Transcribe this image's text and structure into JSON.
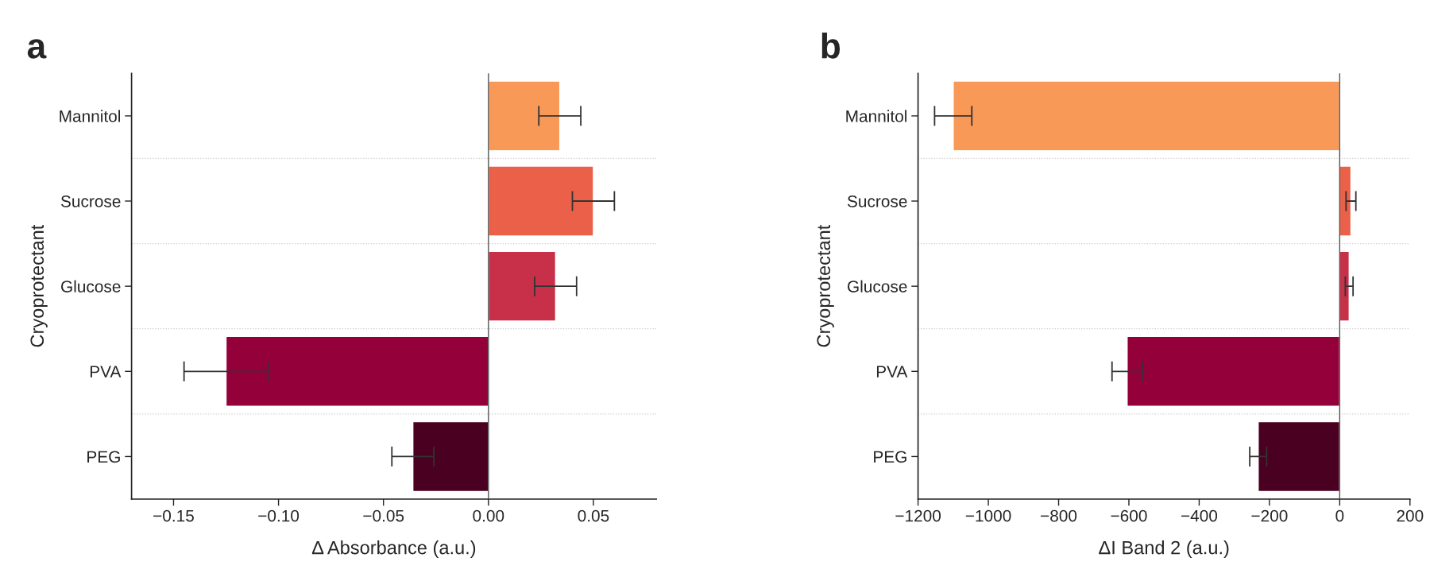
{
  "chart_data": [
    {
      "type": "bar",
      "orientation": "horizontal",
      "title": "a",
      "xlabel": "Δ Absorbance (a.u.)",
      "ylabel": "Cryoprotectant",
      "categories": [
        "Mannitol",
        "Sucrose",
        "Glucose",
        "PVA",
        "PEG"
      ],
      "values": [
        0.034,
        0.05,
        0.032,
        -0.125,
        -0.036
      ],
      "errors": [
        0.01,
        0.01,
        0.01,
        0.02,
        0.01
      ],
      "colors": [
        "#f89957",
        "#ea6048",
        "#c8304a",
        "#93003a",
        "#4a0020"
      ],
      "xlim": [
        -0.17,
        0.08
      ],
      "xticks": [
        {
          "value": -0.15,
          "label": "−0.15"
        },
        {
          "value": -0.1,
          "label": "−0.10"
        },
        {
          "value": -0.05,
          "label": "−0.05"
        },
        {
          "value": 0,
          "label": "0.00"
        },
        {
          "value": 0.05,
          "label": "0.05"
        }
      ],
      "ref_lines": [
        {
          "axis": "x",
          "value": 0,
          "color": "#555555"
        }
      ],
      "grid": "y",
      "legend": false
    },
    {
      "type": "bar",
      "orientation": "horizontal",
      "title": "b",
      "xlabel": "ΔI Band 2 (a.u.)",
      "ylabel": "Cryoprotectant",
      "categories": [
        "Mannitol",
        "Sucrose",
        "Glucose",
        "PVA",
        "PEG"
      ],
      "values": [
        -1100,
        32,
        27,
        -605,
        -232
      ],
      "errors": [
        53,
        14,
        11,
        43,
        24
      ],
      "colors": [
        "#f89957",
        "#ea6048",
        "#c8304a",
        "#93003a",
        "#4a0020"
      ],
      "xlim": [
        -1200,
        200
      ],
      "xticks": [
        {
          "value": -1200,
          "label": "−1200"
        },
        {
          "value": -1000,
          "label": "−1000"
        },
        {
          "value": -800,
          "label": "−800"
        },
        {
          "value": -600,
          "label": "−600"
        },
        {
          "value": -400,
          "label": "−400"
        },
        {
          "value": -200,
          "label": "−200"
        },
        0,
        200
      ],
      "ref_lines": [
        {
          "axis": "x",
          "value": 0,
          "color": "#555555"
        }
      ],
      "grid": "y",
      "legend": false
    }
  ]
}
